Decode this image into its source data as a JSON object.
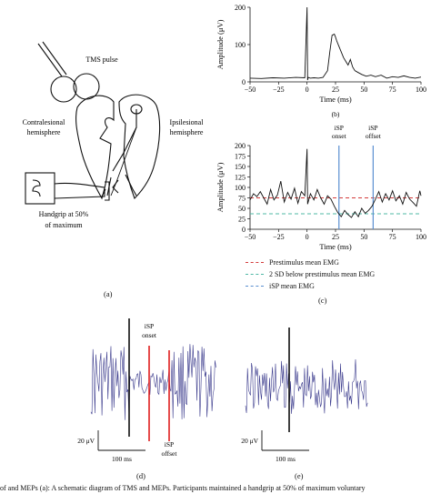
{
  "panel_a": {
    "tms_pulse": "TMS pulse",
    "contralesional": [
      "Contralesional",
      "hemisphere"
    ],
    "ipsilesional": [
      "Ipsilesional",
      "hemisphere"
    ],
    "handgrip": [
      "Handgrip at 50%",
      "of maximum"
    ],
    "letter": "(a)"
  },
  "panel_b": {
    "letter": "(b)",
    "chart_data": {
      "type": "line",
      "xlabel": "Time (ms)",
      "ylabel": "Amplitude (μV)",
      "xlim": [
        -50,
        100
      ],
      "ylim": [
        0,
        200
      ],
      "xticks": [
        "-50",
        "-25",
        "0",
        "25",
        "50",
        "75",
        "100"
      ],
      "yticks": [
        "0",
        "100",
        "200"
      ],
      "x": [
        -50,
        -40,
        -30,
        -20,
        -10,
        -2,
        0,
        0.5,
        1,
        3,
        6,
        10,
        14,
        18,
        20,
        22,
        24,
        25,
        26,
        28,
        30,
        32,
        34,
        36,
        38,
        40,
        42,
        45,
        48,
        52,
        56,
        60,
        65,
        70,
        75,
        80,
        85,
        90,
        95,
        100
      ],
      "y": [
        10,
        9,
        11,
        10,
        12,
        11,
        200,
        5,
        12,
        10,
        11,
        10,
        12,
        30,
        80,
        125,
        128,
        120,
        110,
        95,
        80,
        65,
        55,
        45,
        60,
        40,
        30,
        25,
        20,
        15,
        18,
        14,
        18,
        10,
        14,
        12,
        16,
        12,
        10,
        13
      ]
    }
  },
  "panel_c": {
    "letter": "(c)",
    "isp_onset": [
      "iSP",
      "onset"
    ],
    "isp_offset": [
      "iSP",
      "offset"
    ],
    "chart_data": {
      "type": "line",
      "xlabel": "Time (ms)",
      "ylabel": "Amplitude (μV)",
      "xlim": [
        -50,
        100
      ],
      "ylim": [
        0,
        200
      ],
      "xticks": [
        "-50",
        "-25",
        "0",
        "25",
        "50",
        "75",
        "100"
      ],
      "yticks": [
        "0",
        "25",
        "50",
        "75",
        "100",
        "125",
        "150",
        "175",
        "200"
      ],
      "prestimulus_mean": 75,
      "sd_below": 37,
      "isp_onset_ms": 28,
      "isp_offset_ms": 58,
      "x": [
        -50,
        -47,
        -44,
        -41,
        -38,
        -35,
        -32,
        -29,
        -26,
        -23,
        -20,
        -17,
        -14,
        -11,
        -8,
        -5,
        -2,
        0,
        0.5,
        3,
        6,
        9,
        12,
        15,
        18,
        21,
        24,
        27,
        30,
        33,
        36,
        39,
        42,
        45,
        48,
        51,
        54,
        57,
        60,
        63,
        66,
        69,
        72,
        75,
        78,
        81,
        84,
        87,
        90,
        93,
        96,
        99,
        100
      ],
      "y": [
        70,
        85,
        78,
        90,
        75,
        60,
        95,
        70,
        82,
        115,
        65,
        88,
        72,
        98,
        62,
        90,
        80,
        192,
        60,
        85,
        70,
        95,
        75,
        60,
        80,
        72,
        55,
        40,
        30,
        45,
        35,
        28,
        42,
        30,
        50,
        38,
        45,
        55,
        72,
        90,
        65,
        85,
        70,
        92,
        68,
        80,
        60,
        88,
        72,
        64,
        55,
        92,
        80
      ]
    },
    "legend": [
      "Prestimulus mean EMG",
      "2 SD below prestimulus mean EMG",
      "iSP mean EMG"
    ],
    "legend_colors": [
      "#d33b3b",
      "#4fb8a6",
      "#5a8fd0"
    ],
    "letter_c": "(c)"
  },
  "panel_d": {
    "letter": "(d)",
    "isp_onset": [
      "iSP",
      "onset"
    ],
    "isp_offset": [
      "iSP",
      "offset"
    ],
    "scale_uv": "20 μV",
    "scale_ms": "100 ms"
  },
  "panel_e": {
    "letter": "(e)",
    "scale_uv": "20 μV",
    "scale_ms": "100 ms"
  },
  "caption": "of and MEPs (a): A schematic diagram of TMS and MEPs. Participants maintained a handgrip at 50% of maximum voluntary"
}
